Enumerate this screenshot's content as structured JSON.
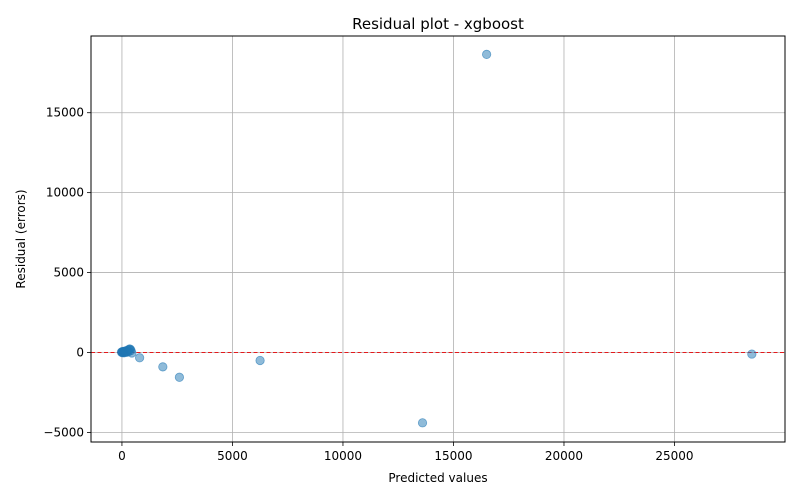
{
  "chart_data": {
    "type": "scatter",
    "title": "Residual plot - xgboost",
    "xlabel": "Predicted values",
    "ylabel": "Residual (errors)",
    "xlim": [
      -1400,
      30000
    ],
    "ylim": [
      -5600,
      19800
    ],
    "x_ticks": [
      0,
      5000,
      10000,
      15000,
      20000,
      25000
    ],
    "x_tick_labels": [
      "0",
      "5000",
      "10000",
      "15000",
      "20000",
      "25000"
    ],
    "y_ticks": [
      -5000,
      0,
      5000,
      10000,
      15000
    ],
    "y_tick_labels": [
      "−5000",
      "0",
      "5000",
      "10000",
      "15000"
    ],
    "grid": true,
    "reference_line": {
      "y": 0,
      "color": "#e31a1c",
      "style": "dashed"
    },
    "point_color": "#1f77b4",
    "points": [
      {
        "x": -20,
        "y": 20
      },
      {
        "x": 0,
        "y": 40
      },
      {
        "x": 10,
        "y": -10
      },
      {
        "x": 20,
        "y": 30
      },
      {
        "x": 40,
        "y": 60
      },
      {
        "x": 60,
        "y": 0
      },
      {
        "x": 80,
        "y": 50
      },
      {
        "x": 100,
        "y": -20
      },
      {
        "x": 120,
        "y": 80
      },
      {
        "x": 150,
        "y": 30
      },
      {
        "x": 180,
        "y": 100
      },
      {
        "x": 200,
        "y": 10
      },
      {
        "x": 230,
        "y": 60
      },
      {
        "x": 260,
        "y": 150
      },
      {
        "x": 290,
        "y": 40
      },
      {
        "x": 320,
        "y": 170
      },
      {
        "x": 350,
        "y": 220
      },
      {
        "x": 380,
        "y": 200
      },
      {
        "x": 410,
        "y": 120
      },
      {
        "x": 450,
        "y": -30
      },
      {
        "x": 800,
        "y": -330
      },
      {
        "x": 1850,
        "y": -900
      },
      {
        "x": 2600,
        "y": -1550
      },
      {
        "x": 6250,
        "y": -500
      },
      {
        "x": 13600,
        "y": -4400
      },
      {
        "x": 16500,
        "y": 18650
      },
      {
        "x": 28500,
        "y": -100
      }
    ]
  }
}
